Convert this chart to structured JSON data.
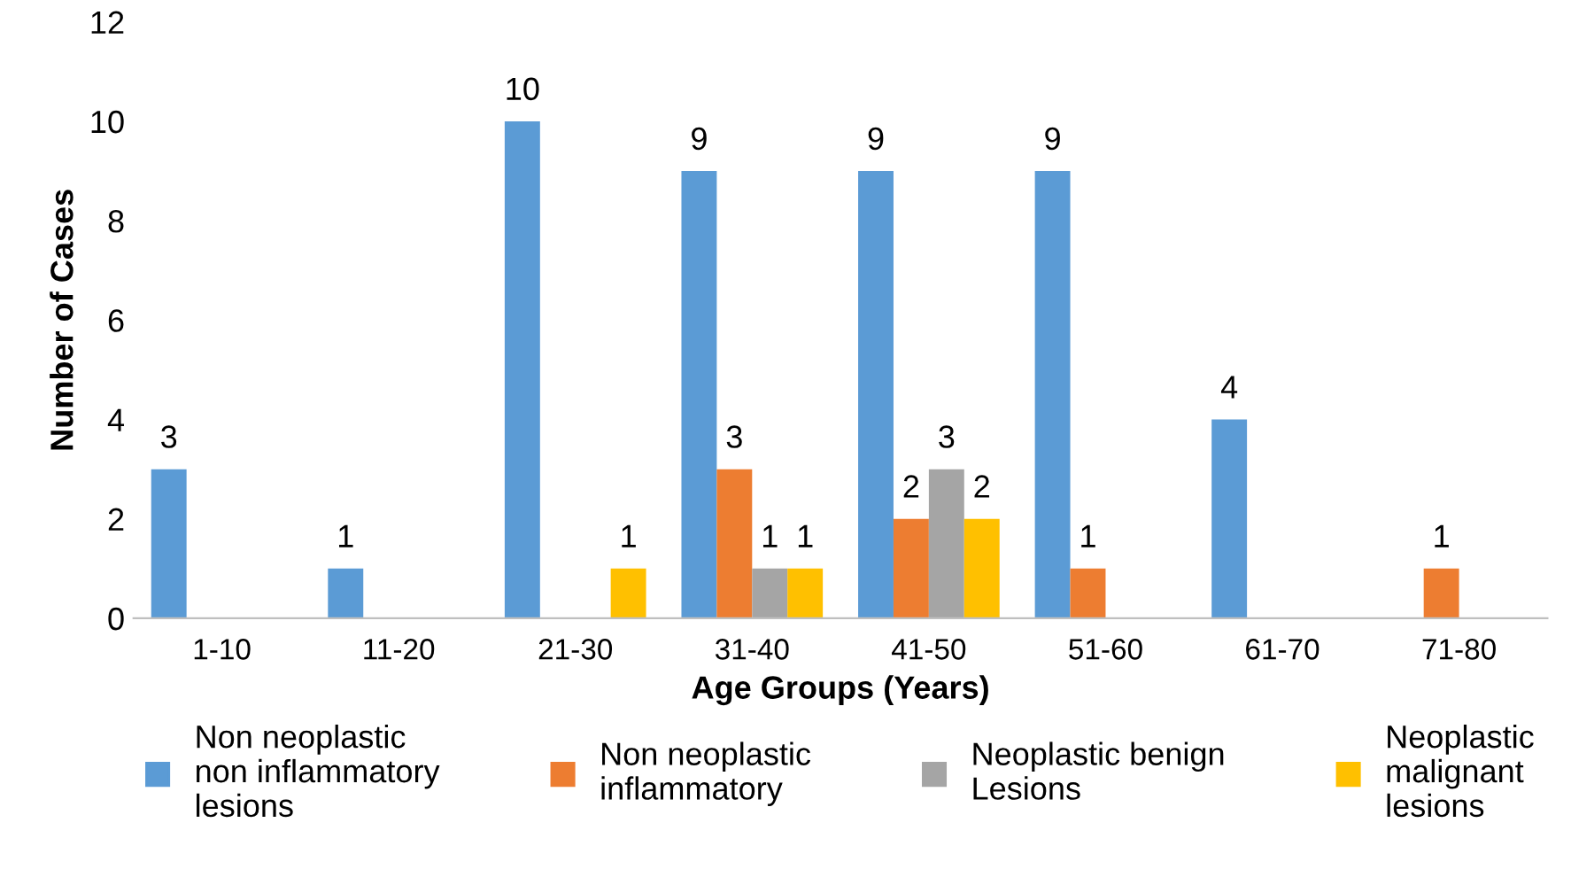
{
  "chart_data": {
    "type": "bar",
    "xlabel": "Age Groups (Years)",
    "ylabel": "Number of Cases",
    "categories": [
      "1-10",
      "11-20",
      "21-30",
      "31-40",
      "41-50",
      "51-60",
      "61-70",
      "71-80"
    ],
    "series": [
      {
        "name": "Non neoplastic\nnon inflammatory\nlesions",
        "color": "#5b9bd5",
        "values": [
          3,
          1,
          10,
          9,
          9,
          9,
          4,
          0
        ],
        "value_labels": [
          "3",
          "1",
          "10",
          "9",
          "9",
          "9",
          "4",
          null
        ]
      },
      {
        "name": "Non neoplastic\ninflammatory",
        "color": "#ed7d31",
        "values": [
          0,
          0,
          0,
          3,
          2,
          1,
          0,
          1
        ],
        "value_labels": [
          null,
          null,
          null,
          "3",
          "2",
          "1",
          null,
          "1"
        ]
      },
      {
        "name": "Neoplastic benign\nLesions",
        "color": "#a5a5a5",
        "values": [
          0,
          0,
          0,
          1,
          3,
          0,
          0,
          0
        ],
        "value_labels": [
          null,
          null,
          null,
          "1",
          "3",
          null,
          null,
          null
        ]
      },
      {
        "name": "Neoplastic\nmalignant\nlesions",
        "color": "#ffc000",
        "values": [
          0,
          0,
          1,
          1,
          2,
          0,
          0,
          0
        ],
        "value_labels": [
          null,
          null,
          "1",
          "1",
          "2",
          null,
          null,
          null
        ]
      }
    ],
    "ylim": [
      0,
      12
    ],
    "yticks": [
      0,
      2,
      4,
      6,
      8,
      10,
      12
    ],
    "grid": false,
    "legend": "bottom"
  }
}
